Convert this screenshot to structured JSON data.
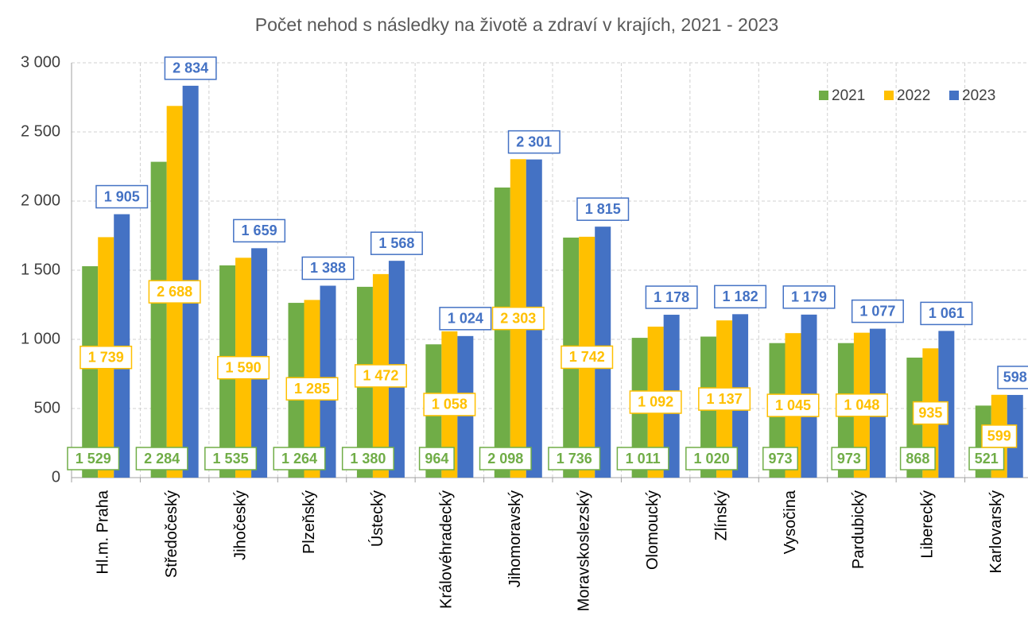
{
  "chart_data": {
    "type": "bar",
    "title": "Počet nehod s následky  na životě a zdraví v krajích, 2021 - 2023",
    "categories": [
      "Hl.m. Praha",
      "Středočeský",
      "Jihočeský",
      "Plzeňský",
      "Ústecký",
      "Královéhradecký",
      "Jihomoravský",
      "Moravskoslezský",
      "Olomoucký",
      "Zlínský",
      "Vysočina",
      "Pardubický",
      "Liberecký",
      "Karlovarský"
    ],
    "series": [
      {
        "name": "2021",
        "color": "#70ad47",
        "values": [
          1529,
          2284,
          1535,
          1264,
          1380,
          964,
          2098,
          1736,
          1011,
          1020,
          973,
          973,
          868,
          521
        ],
        "value_labels": [
          "1 529",
          "2 284",
          "1 535",
          "1 264",
          "1 380",
          "964",
          "2 098",
          "1 736",
          "1 011",
          "1 020",
          "973",
          "973",
          "868",
          "521"
        ]
      },
      {
        "name": "2022",
        "color": "#ffc000",
        "values": [
          1739,
          2688,
          1590,
          1285,
          1472,
          1058,
          2303,
          1742,
          1092,
          1137,
          1045,
          1048,
          935,
          599
        ],
        "value_labels": [
          "1 739",
          "2 688",
          "1 590",
          "1 285",
          "1 472",
          "1 058",
          "2 303",
          "1 742",
          "1 092",
          "1 137",
          "1 045",
          "1 048",
          "935",
          "599"
        ]
      },
      {
        "name": "2023",
        "color": "#4472c4",
        "values": [
          1905,
          2834,
          1659,
          1388,
          1568,
          1024,
          2301,
          1815,
          1178,
          1182,
          1179,
          1077,
          1061,
          598
        ],
        "value_labels": [
          "1 905",
          "2 834",
          "1 659",
          "1 388",
          "1 568",
          "1 024",
          "2 301",
          "1 815",
          "1 178",
          "1 182",
          "1 179",
          "1 077",
          "1 061",
          "598"
        ]
      }
    ],
    "ylim": [
      0,
      3000
    ],
    "yticks": [
      0,
      500,
      {
        "value": 1000,
        "label": "1 000"
      },
      {
        "value": 1500,
        "label": "1 500"
      },
      {
        "value": 2000,
        "label": "2 000"
      },
      {
        "value": 2500,
        "label": "2 500"
      },
      {
        "value": 3000,
        "label": "3 000"
      }
    ],
    "grid": true,
    "legend": "top-right"
  }
}
